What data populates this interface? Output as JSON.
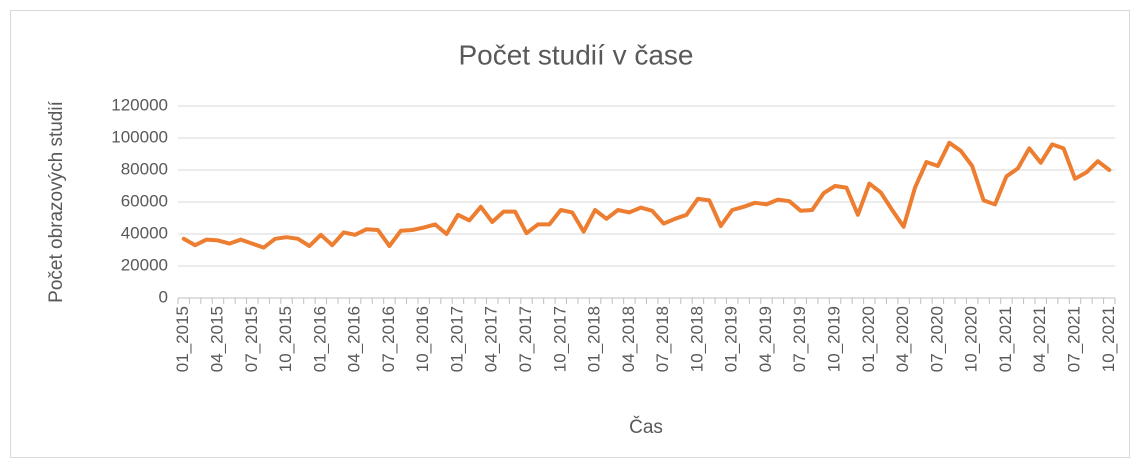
{
  "chart_data": {
    "type": "line",
    "title": "Počet studií v čase",
    "x_label": "Čas",
    "y_label": "Počet obrazových studií",
    "categories": [
      "01_2015",
      null,
      null,
      "04_2015",
      null,
      null,
      "07_2015",
      null,
      null,
      "10_2015",
      null,
      null,
      "01_2016",
      null,
      null,
      "04_2016",
      null,
      null,
      "07_2016",
      null,
      null,
      "10_2016",
      null,
      null,
      "01_2017",
      null,
      null,
      "04_2017",
      null,
      null,
      "07_2017",
      null,
      null,
      "10_2017",
      null,
      null,
      "01_2018",
      null,
      null,
      "04_2018",
      null,
      null,
      "07_2018",
      null,
      null,
      "10_2018",
      null,
      null,
      "01_2019",
      null,
      null,
      "04_2019",
      null,
      null,
      "07_2019",
      null,
      null,
      "10_2019",
      null,
      null,
      "01_2020",
      null,
      null,
      "04_2020",
      null,
      null,
      "07_2020",
      null,
      null,
      "10_2020",
      null,
      null,
      "01_2021",
      null,
      null,
      "04_2021",
      null,
      null,
      "07_2021",
      null,
      null,
      "10_2021"
    ],
    "series": [
      {
        "name": "Počet studií",
        "color": "#ed7d31",
        "values": [
          37000,
          33000,
          36500,
          36000,
          34000,
          36500,
          34000,
          31500,
          37000,
          38000,
          37000,
          32500,
          39500,
          33000,
          41000,
          39500,
          43000,
          42500,
          32500,
          42000,
          42500,
          44000,
          46000,
          40000,
          52000,
          48500,
          57000,
          47500,
          54000,
          54000,
          40500,
          46000,
          46000,
          55000,
          53500,
          41500,
          55000,
          49500,
          55000,
          53500,
          56500,
          54500,
          46500,
          49500,
          52000,
          62000,
          61000,
          45000,
          55000,
          57000,
          59500,
          58500,
          61500,
          60500,
          54500,
          55000,
          65500,
          70000,
          69000,
          52000,
          71500,
          66000,
          55000,
          44500,
          69000,
          85000,
          82500,
          97000,
          92000,
          82500,
          61000,
          58500,
          76000,
          81000,
          93500,
          84500,
          96000,
          93500,
          74500,
          78500,
          85500,
          80000
        ]
      }
    ],
    "ylim": [
      0,
      120000
    ],
    "yticks": [
      0,
      20000,
      40000,
      60000,
      80000,
      100000,
      120000
    ],
    "grid": true
  }
}
